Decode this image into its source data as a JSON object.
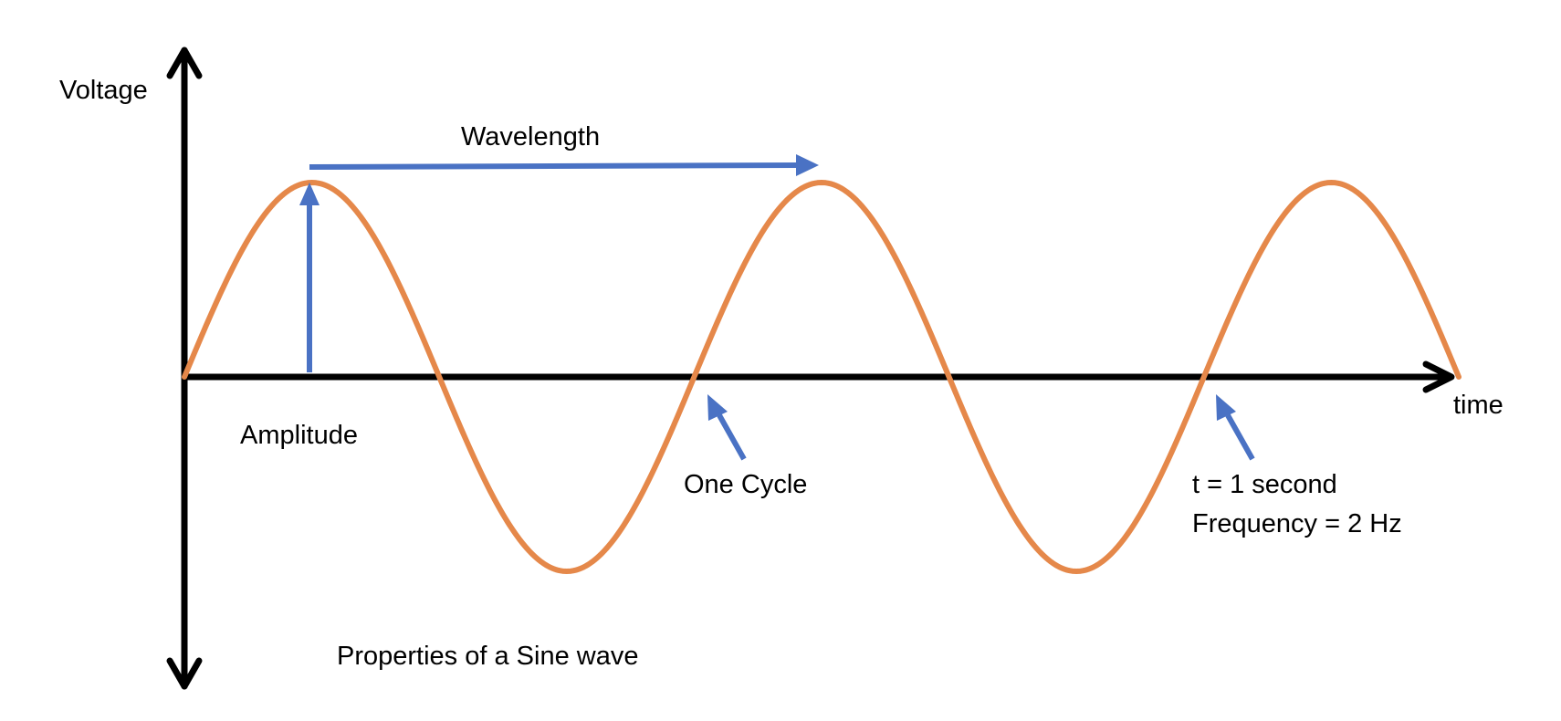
{
  "labels": {
    "y_axis": "Voltage",
    "x_axis": "time",
    "wavelength": "Wavelength",
    "amplitude": "Amplitude",
    "one_cycle": "One Cycle",
    "t_line": "t = 1 second",
    "frequency_line": "Frequency = 2 Hz",
    "caption": "Properties of a Sine wave"
  },
  "chart_data": {
    "type": "line",
    "series": [
      {
        "values": [
          0,
          1,
          0,
          -1,
          0,
          1,
          0,
          -1,
          0,
          1,
          0
        ]
      }
    ],
    "cycles": 2.5,
    "peaks": 3,
    "troughs": 2
  },
  "colors": {
    "wave": "#E5884A",
    "annotation": "#4A72C4",
    "axis": "#000000"
  },
  "icons": [
    "arrow-up-icon",
    "arrow-down-icon",
    "arrow-right-icon"
  ]
}
